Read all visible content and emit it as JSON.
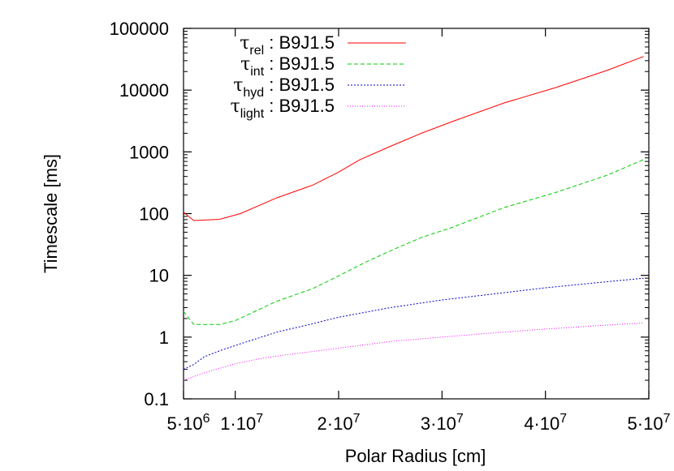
{
  "chart_data": {
    "type": "line",
    "title": "",
    "xlabel": "Polar Radius [cm]",
    "ylabel": "Timescale [ms]",
    "xlim": [
      5000000,
      50000000
    ],
    "ylim": [
      0.1,
      100000
    ],
    "yscale": "log",
    "grid": false,
    "legend_placement": "top-left",
    "x_ticks": [
      {
        "value": 5000000,
        "label": "5·10",
        "exp": "6"
      },
      {
        "value": 10000000,
        "label": "1·10",
        "exp": "7"
      },
      {
        "value": 20000000,
        "label": "2·10",
        "exp": "7"
      },
      {
        "value": 30000000,
        "label": "3·10",
        "exp": "7"
      },
      {
        "value": 40000000,
        "label": "4·10",
        "exp": "7"
      },
      {
        "value": 50000000,
        "label": "5·10",
        "exp": "7"
      }
    ],
    "y_ticks": [
      {
        "value": 0.1,
        "label": "0.1"
      },
      {
        "value": 1,
        "label": "1"
      },
      {
        "value": 10,
        "label": "10"
      },
      {
        "value": 100,
        "label": "100"
      },
      {
        "value": 1000,
        "label": "1000"
      },
      {
        "value": 10000,
        "label": "10000"
      },
      {
        "value": 100000,
        "label": "100000"
      }
    ],
    "series": [
      {
        "name": "τrel : B9J1.5",
        "symbol": "τ",
        "sub": "rel",
        "rest": " : B9J1.5",
        "color": "#ff0000",
        "dash": "",
        "x": [
          5000000,
          6000000,
          8500000,
          10500000,
          14000000,
          17500000,
          20000000,
          22000000,
          25000000,
          28000000,
          31000000,
          36000000,
          41000000,
          46000000,
          49500000
        ],
        "y": [
          105,
          77,
          81,
          100,
          180,
          290,
          470,
          740,
          1230,
          2000,
          3100,
          6200,
          11000,
          21000,
          35000
        ]
      },
      {
        "name": "τint : B9J1.5",
        "symbol": "τ",
        "sub": "int",
        "rest": " : B9J1.5",
        "color": "#00cc00",
        "dash": "5,3",
        "x": [
          5000000,
          6000000,
          8500000,
          10000000,
          14000000,
          17500000,
          20000000,
          22500000,
          25000000,
          28000000,
          31000000,
          36000000,
          41000000,
          46000000,
          49500000
        ],
        "y": [
          2.6,
          1.6,
          1.6,
          1.85,
          3.8,
          6.1,
          9.8,
          16,
          25,
          41,
          60,
          125,
          220,
          420,
          750
        ]
      },
      {
        "name": "τhyd : B9J1.5",
        "symbol": "τ",
        "sub": "hyd",
        "rest": " : B9J1.5",
        "color": "#0000cc",
        "dash": "2,2",
        "x": [
          5000000,
          6000000,
          7000000,
          8500000,
          10500000,
          14000000,
          17500000,
          20000000,
          25000000,
          30000000,
          35000000,
          40000000,
          45000000,
          49500000
        ],
        "y": [
          0.3,
          0.36,
          0.48,
          0.6,
          0.78,
          1.2,
          1.65,
          2.1,
          3.0,
          4.0,
          5.0,
          6.3,
          7.6,
          9.0
        ]
      },
      {
        "name": "τlight : B9J1.5",
        "symbol": "τ",
        "sub": "light",
        "rest": " : B9J1.5",
        "color": "#ff00ff",
        "dash": "1,2",
        "x": [
          5000000,
          6000000,
          7500000,
          10000000,
          12500000,
          15000000,
          20000000,
          25000000,
          30000000,
          35000000,
          40000000,
          45000000,
          49500000
        ],
        "y": [
          0.2,
          0.23,
          0.28,
          0.37,
          0.45,
          0.52,
          0.66,
          0.85,
          1.0,
          1.17,
          1.35,
          1.53,
          1.7
        ]
      }
    ]
  }
}
